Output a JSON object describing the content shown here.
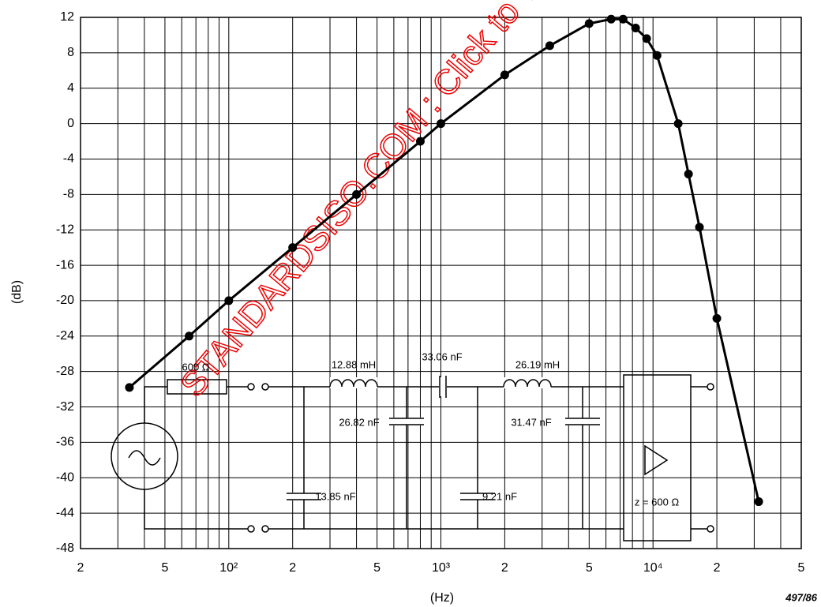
{
  "chart_data": {
    "type": "line",
    "xlabel": "(Hz)",
    "ylabel": "(dB)",
    "figure_number": "497/86",
    "log_x": true,
    "grid": true,
    "color": "#000000",
    "xlim": [
      20,
      50000
    ],
    "ylim": [
      -48,
      12
    ],
    "xticks": [
      {
        "value": 20,
        "label": "2"
      },
      {
        "value": 50,
        "label": "5"
      },
      {
        "value": 100,
        "label": "10²"
      },
      {
        "value": 200,
        "label": "2"
      },
      {
        "value": 500,
        "label": "5"
      },
      {
        "value": 1000,
        "label": "10³"
      },
      {
        "value": 2000,
        "label": "2"
      },
      {
        "value": 5000,
        "label": "5"
      },
      {
        "value": 10000,
        "label": "10⁴"
      },
      {
        "value": 20000,
        "label": "2"
      },
      {
        "value": 50000,
        "label": "5"
      }
    ],
    "minor_xticks": [
      30,
      40,
      60,
      70,
      80,
      90,
      300,
      400,
      600,
      700,
      800,
      900,
      3000,
      4000,
      6000,
      7000,
      8000,
      9000,
      30000,
      40000
    ],
    "yticks": [
      -48,
      -44,
      -40,
      -36,
      -32,
      -28,
      -24,
      -20,
      -16,
      -12,
      -8,
      -4,
      0,
      4,
      8,
      12
    ],
    "x": [
      34,
      65,
      100,
      200,
      400,
      800,
      1000,
      2000,
      3260,
      5000,
      6350,
      7230,
      8280,
      9330,
      10450,
      13150,
      14700,
      16560,
      20000,
      31500
    ],
    "values": [
      -29.8,
      -24,
      -20,
      -14,
      -8,
      -2,
      0,
      5.5,
      8.8,
      11.3,
      11.8,
      11.8,
      10.8,
      9.6,
      7.7,
      0,
      -5.7,
      -11.7,
      -22,
      -42.7
    ],
    "circuit_labels": [
      "600 Ω",
      "12.88 mH",
      "33.06 nF",
      "26.19 mH",
      "26.82 nF",
      "31.47 nF",
      "13.85 nF",
      "9.21 nF",
      "z = 600 Ω"
    ],
    "watermark": "STANDARDSISO.COM : Click to view the"
  }
}
